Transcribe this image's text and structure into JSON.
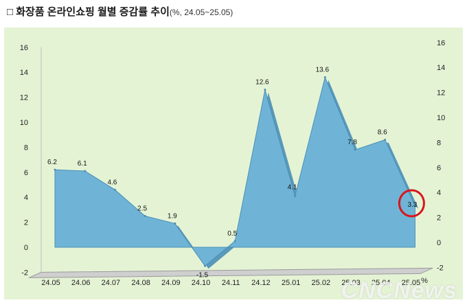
{
  "title": {
    "main": "□ 화장품 온라인쇼핑 월별 증감률 추이",
    "sub": "(%, 24.05~25.05)"
  },
  "watermark": "CNCNews",
  "chart_data": {
    "type": "area",
    "categories": [
      "24.05",
      "24.06",
      "24.07",
      "24.08",
      "24.09",
      "24.10",
      "24.11",
      "24.12",
      "25.01",
      "25.02",
      "25.03",
      "25.04",
      "25.05"
    ],
    "values": [
      6.2,
      6.1,
      4.6,
      2.5,
      1.9,
      -1.5,
      0.5,
      12.6,
      4.1,
      13.6,
      7.8,
      8.6,
      3.3
    ],
    "labels": [
      "6.2",
      "6.1",
      "4.6",
      "2.5",
      "1.9",
      "-1.5",
      "0.5",
      "12.6",
      "4.1",
      "13.6",
      "7.8",
      "8.6",
      "3.3"
    ],
    "title": "화장품 온라인쇼핑 월별 증감률 추이",
    "xlabel": "",
    "ylabel": "",
    "y_unit": "%",
    "ylim": [
      -2,
      16
    ],
    "yticks": [
      -2,
      0,
      2,
      4,
      6,
      8,
      10,
      12,
      14,
      16
    ],
    "grid": false,
    "legend": "none",
    "highlight_index": 12,
    "colors": {
      "fill": "#6fb4d6",
      "edge": "#4a8fb6",
      "background": "#e5f3d5",
      "floor": "#cfcfcf",
      "highlight": "#d9141b"
    }
  }
}
